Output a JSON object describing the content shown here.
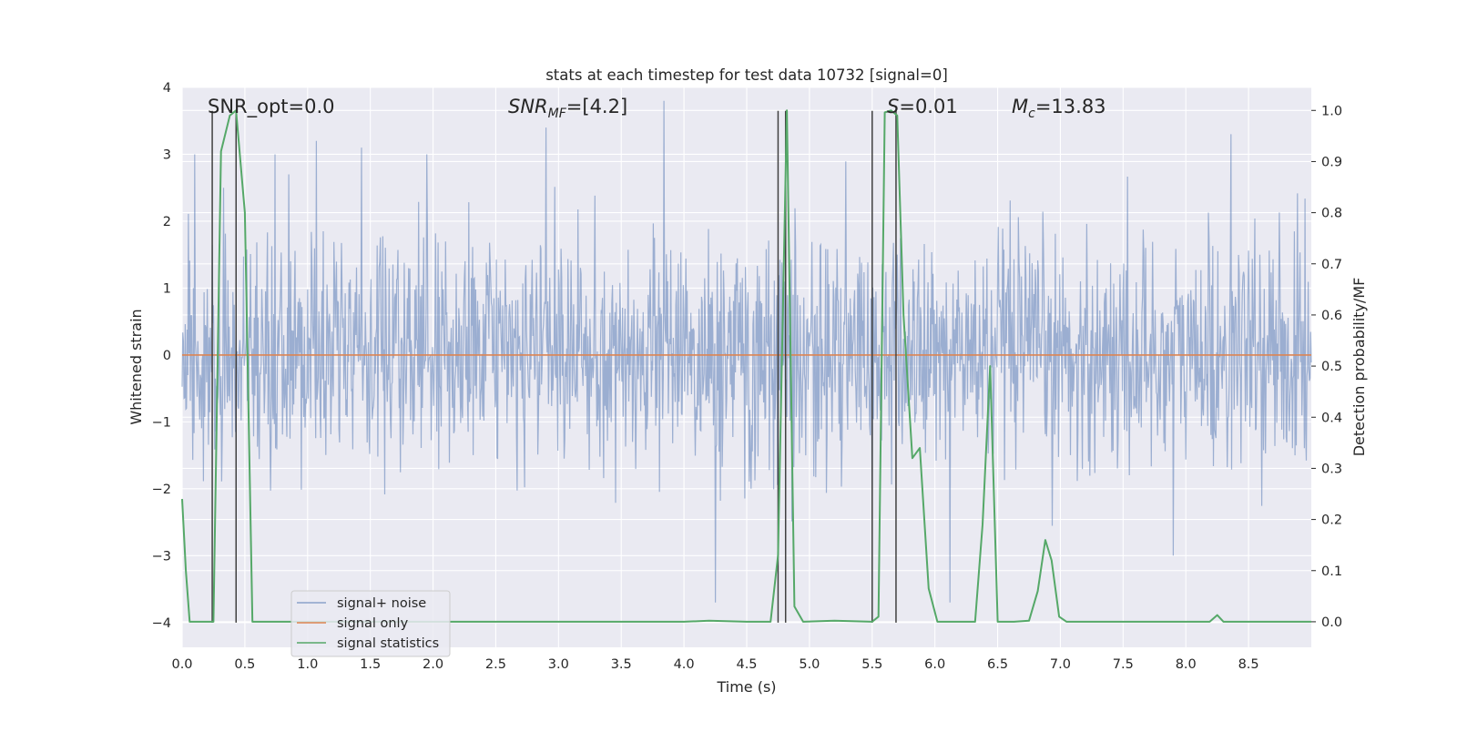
{
  "chart_data": {
    "type": "line",
    "title": "stats at each timestep for test data 10732 [signal=0]",
    "xlabel": "Time (s)",
    "ylabel_left": "Whitened strain",
    "ylabel_right": "Detection probability/MF",
    "xlim": [
      0.0,
      9.0
    ],
    "ylim_left": [
      -4.37,
      4.0
    ],
    "ylim_right": [
      -0.05,
      1.045
    ],
    "x_ticks": [
      0.0,
      0.5,
      1.0,
      1.5,
      2.0,
      2.5,
      3.0,
      3.5,
      4.0,
      4.5,
      5.0,
      5.5,
      6.0,
      6.5,
      7.0,
      7.5,
      8.0,
      8.5
    ],
    "x_tick_labels": [
      "0.0",
      "0.5",
      "1.0",
      "1.5",
      "2.0",
      "2.5",
      "3.0",
      "3.5",
      "4.0",
      "4.5",
      "5.0",
      "5.5",
      "6.0",
      "6.5",
      "7.0",
      "7.5",
      "8.0",
      "8.5"
    ],
    "y_left_ticks": [
      4,
      3,
      2,
      1,
      0,
      -1,
      -2,
      -3,
      -4
    ],
    "y_left_tick_labels": [
      "4",
      "3",
      "2",
      "1",
      "0",
      "−1",
      "−2",
      "−3",
      "−4"
    ],
    "y_right_ticks": [
      1.0,
      0.9,
      0.8,
      0.7,
      0.6,
      0.5,
      0.4,
      0.3,
      0.2,
      0.1,
      0.0
    ],
    "y_right_tick_labels": [
      "1.0",
      "0.9",
      "0.8",
      "0.7",
      "0.6",
      "0.5",
      "0.4",
      "0.3",
      "0.2",
      "0.1",
      "0.0"
    ],
    "grid": true,
    "legend_position": "lower-left",
    "annotations": {
      "snr_opt": "SNR_opt=0.0",
      "snr_mf_main": "SNR",
      "snr_mf_sub": "MF",
      "snr_mf_rest": "=[4.2]",
      "s_main": "S",
      "s_rest": "=0.01",
      "mc_main": "M",
      "mc_sub": "c",
      "mc_rest": "=13.83"
    },
    "colors": {
      "background": "#EAEAF2",
      "grid": "#FFFFFF",
      "noise": "#4C72B0",
      "signal": "#DD8452",
      "stats": "#55A868",
      "vline": "#404040"
    },
    "series": [
      {
        "name": "signal+ noise",
        "axis": "left",
        "style": "dense-noise",
        "noise_sigma": 0.85,
        "peak_examples": [
          [
            0.1,
            3.0
          ],
          [
            0.33,
            2.5
          ],
          [
            0.85,
            2.7
          ],
          [
            1.07,
            3.2
          ],
          [
            1.43,
            3.1
          ],
          [
            1.95,
            3.0
          ],
          [
            2.9,
            3.4
          ],
          [
            3.84,
            3.8
          ],
          [
            4.25,
            -3.7
          ],
          [
            6.12,
            -3.7
          ],
          [
            7.9,
            -3.0
          ],
          [
            8.36,
            3.3
          ]
        ]
      },
      {
        "name": "signal only",
        "axis": "left",
        "x": [
          0.0,
          9.0
        ],
        "y": [
          0.0,
          0.0
        ]
      },
      {
        "name": "signal statistics",
        "axis": "right",
        "x": [
          0.0,
          0.03,
          0.06,
          0.25,
          0.31,
          0.38,
          0.43,
          0.5,
          0.56,
          1.0,
          4.0,
          4.2,
          4.5,
          4.69,
          4.75,
          4.82,
          4.88,
          4.95,
          5.2,
          5.5,
          5.55,
          5.6,
          5.65,
          5.7,
          5.75,
          5.82,
          5.88,
          5.95,
          6.02,
          6.32,
          6.38,
          6.44,
          6.5,
          6.63,
          6.75,
          6.82,
          6.88,
          6.93,
          6.99,
          7.05,
          8.19,
          8.25,
          8.3,
          8.4,
          9.0
        ],
        "y": [
          0.24,
          0.1,
          0.0,
          0.0,
          0.92,
          0.99,
          1.0,
          0.8,
          0.0,
          0.0,
          0.0,
          0.002,
          0.0,
          0.0,
          0.13,
          1.0,
          0.03,
          0.0,
          0.002,
          0.0,
          0.01,
          0.996,
          1.0,
          0.99,
          0.6,
          0.32,
          0.34,
          0.065,
          0.0,
          0.0,
          0.19,
          0.5,
          0.0,
          0.0,
          0.002,
          0.06,
          0.16,
          0.12,
          0.01,
          0.0,
          0.0,
          0.013,
          0.0,
          0.0,
          0.0
        ]
      }
    ],
    "vertical_lines": [
      {
        "x": 0.24,
        "y_top": 3.65,
        "y_bottom": -4.0
      },
      {
        "x": 0.43,
        "y_top": 3.65,
        "y_bottom": -4.0
      },
      {
        "x": 4.75,
        "y_top": 3.65,
        "y_bottom": -4.0
      },
      {
        "x": 4.81,
        "y_top": 3.65,
        "y_bottom": -4.0
      },
      {
        "x": 5.5,
        "y_top": 3.65,
        "y_bottom": -4.0
      },
      {
        "x": 5.69,
        "y_top": 3.65,
        "y_bottom": -4.0
      }
    ]
  }
}
